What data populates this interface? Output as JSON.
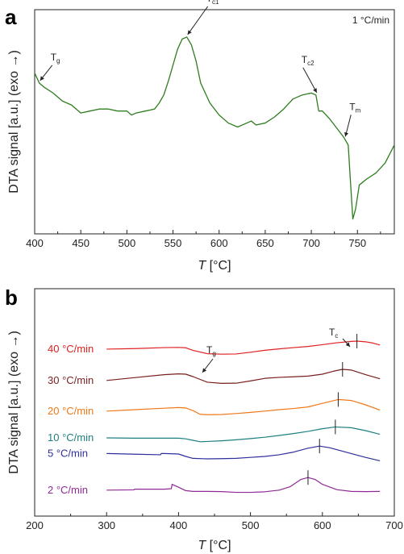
{
  "chart_data": [
    {
      "panel": "a",
      "type": "line",
      "rate_annotation": "1 °C/min",
      "xlabel_italic": "T",
      "xlabel_rest": " [°C]",
      "ylabel": "DTA signal [a.u.]",
      "ylabel_direction": "(exo →)",
      "xlim": [
        400,
        790
      ],
      "xticks": [
        400,
        450,
        500,
        550,
        600,
        650,
        700,
        750
      ],
      "ylim": [
        0,
        1
      ],
      "series": [
        {
          "color": "#2e7d1e",
          "x": [
            400,
            405,
            410,
            420,
            430,
            440,
            450,
            460,
            470,
            480,
            490,
            500,
            505,
            510,
            520,
            530,
            535,
            540,
            545,
            550,
            555,
            560,
            565,
            570,
            575,
            580,
            590,
            600,
            610,
            620,
            630,
            635,
            640,
            650,
            660,
            670,
            680,
            690,
            700,
            705,
            708,
            712,
            720,
            730,
            735,
            740,
            742,
            745,
            748,
            752,
            760,
            770,
            780,
            790
          ],
          "y": [
            0.78,
            0.73,
            0.71,
            0.68,
            0.64,
            0.62,
            0.58,
            0.59,
            0.6,
            0.6,
            0.59,
            0.59,
            0.57,
            0.58,
            0.59,
            0.6,
            0.63,
            0.67,
            0.74,
            0.82,
            0.9,
            0.95,
            0.96,
            0.92,
            0.84,
            0.73,
            0.63,
            0.57,
            0.53,
            0.51,
            0.53,
            0.54,
            0.52,
            0.53,
            0.56,
            0.6,
            0.65,
            0.67,
            0.68,
            0.67,
            0.59,
            0.59,
            0.55,
            0.49,
            0.46,
            0.42,
            0.27,
            0.05,
            0.1,
            0.22,
            0.25,
            0.28,
            0.33,
            0.42
          ]
        }
      ],
      "annotations": [
        {
          "main": "T",
          "sub": "g",
          "x": 405,
          "y": 0.73
        },
        {
          "main": "T",
          "sub": "c1",
          "x": 565,
          "y": 0.96
        },
        {
          "main": "T",
          "sub": "c2",
          "x": 705,
          "y": 0.67
        },
        {
          "main": "T",
          "sub": "m",
          "x": 736,
          "y": 0.45
        }
      ]
    },
    {
      "panel": "b",
      "type": "line",
      "xlabel_italic": "T",
      "xlabel_rest": " [°C]",
      "ylabel": "DTA signal [a.u.]",
      "ylabel_direction": "(exo →)",
      "xlim": [
        200,
        700
      ],
      "xticks": [
        200,
        300,
        400,
        500,
        600,
        700
      ],
      "tg_label": {
        "main": "T",
        "sub": "g"
      },
      "tc_label": {
        "main": "T",
        "sub": "c"
      },
      "series": [
        {
          "name": "40 °C/min",
          "color": "#e02020",
          "tc": 648,
          "x": [
            300,
            340,
            380,
            400,
            410,
            420,
            440,
            460,
            480,
            500,
            520,
            540,
            560,
            580,
            600,
            620,
            640,
            648,
            660,
            670,
            680
          ],
          "y": [
            0.92,
            0.98,
            1.08,
            1.1,
            1.06,
            0.8,
            0.45,
            0.4,
            0.42,
            0.6,
            0.8,
            0.95,
            1.08,
            1.2,
            1.38,
            1.58,
            1.72,
            1.75,
            1.68,
            1.55,
            1.35
          ]
        },
        {
          "name": "30 °C/min",
          "color": "#7a1f1f",
          "tc": 628,
          "x": [
            300,
            340,
            380,
            400,
            410,
            420,
            440,
            460,
            480,
            500,
            520,
            540,
            560,
            580,
            600,
            615,
            628,
            640,
            660,
            680
          ],
          "y": [
            0.6,
            0.9,
            1.2,
            1.28,
            1.25,
            1.0,
            0.42,
            0.3,
            0.32,
            0.55,
            0.82,
            0.92,
            0.98,
            1.05,
            1.25,
            1.55,
            1.75,
            1.68,
            1.2,
            0.78
          ]
        },
        {
          "name": "20 °C/min",
          "color": "#f07818",
          "tc": 622,
          "x": [
            300,
            340,
            380,
            400,
            410,
            420,
            430,
            440,
            460,
            480,
            500,
            520,
            540,
            560,
            580,
            600,
            622,
            640,
            660,
            680
          ],
          "y": [
            0.35,
            0.5,
            0.65,
            0.72,
            0.68,
            0.4,
            0.02,
            -0.02,
            0.0,
            0.1,
            0.22,
            0.35,
            0.5,
            0.62,
            0.78,
            1.15,
            1.55,
            1.45,
            1.0,
            0.45
          ]
        },
        {
          "name": "10 °C/min",
          "color": "#1f7f7f",
          "tc": 618,
          "x": [
            300,
            340,
            380,
            400,
            410,
            420,
            430,
            440,
            460,
            480,
            500,
            520,
            540,
            560,
            580,
            600,
            618,
            640,
            660,
            680
          ],
          "y": [
            0.25,
            0.22,
            0.22,
            0.22,
            0.15,
            0.0,
            -0.15,
            -0.12,
            -0.05,
            0.05,
            0.18,
            0.32,
            0.5,
            0.7,
            0.92,
            1.2,
            1.38,
            1.3,
            1.0,
            0.62
          ]
        },
        {
          "name": "5 °C/min",
          "color": "#2e2e9e",
          "tc": 596,
          "x": [
            300,
            340,
            375,
            376,
            380,
            400,
            410,
            420,
            440,
            460,
            480,
            500,
            520,
            540,
            560,
            580,
            596,
            610,
            640,
            660,
            680
          ],
          "y": [
            0.55,
            0.48,
            0.42,
            0.55,
            0.55,
            0.5,
            0.25,
            0.05,
            0.0,
            0.02,
            0.05,
            0.15,
            0.25,
            0.42,
            0.7,
            1.1,
            1.32,
            1.15,
            0.55,
            0.15,
            -0.2
          ]
        },
        {
          "name": "2 °C/min",
          "color": "#8e2a96",
          "tc": 580,
          "x": [
            300,
            338,
            339,
            380,
            390,
            391,
            400,
            410,
            420,
            440,
            460,
            480,
            500,
            520,
            540,
            555,
            570,
            580,
            590,
            600,
            620,
            640,
            660,
            680
          ],
          "y": [
            0.35,
            0.38,
            0.45,
            0.45,
            0.5,
            0.95,
            0.65,
            0.3,
            0.22,
            0.22,
            0.2,
            0.12,
            0.12,
            0.18,
            0.35,
            0.7,
            1.45,
            1.65,
            1.45,
            0.95,
            0.4,
            0.22,
            0.2,
            0.22
          ]
        }
      ]
    }
  ]
}
